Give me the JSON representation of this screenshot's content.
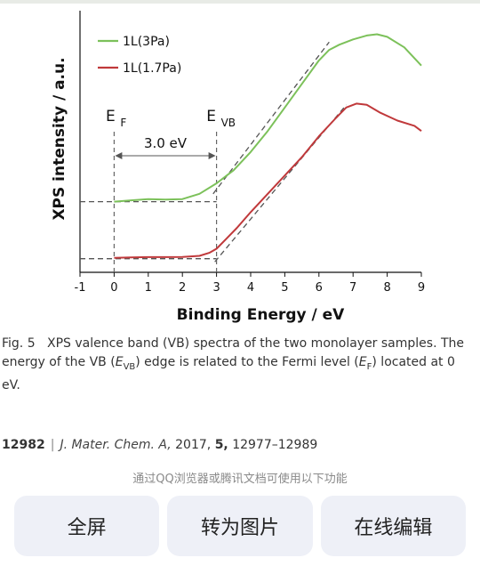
{
  "chart_data": {
    "type": "line",
    "xlabel": "Binding Energy / eV",
    "ylabel": "XPS intensity / a.u.",
    "xlim": [
      -1,
      9
    ],
    "xticks": [
      "-1",
      "0",
      "1",
      "2",
      "3",
      "4",
      "5",
      "6",
      "7",
      "8",
      "9"
    ],
    "legend_position": "top-left",
    "grid": false,
    "series": [
      {
        "name": "1L(3Pa)",
        "color": "#7cc15a",
        "x": [
          0.0,
          0.5,
          1.0,
          1.5,
          2.0,
          2.5,
          3.0,
          3.5,
          4.0,
          4.5,
          5.0,
          5.5,
          6.0,
          6.3,
          6.6,
          7.0,
          7.4,
          7.7,
          8.0,
          8.5,
          9.0
        ],
        "y": [
          0.27,
          0.275,
          0.28,
          0.278,
          0.28,
          0.3,
          0.34,
          0.39,
          0.46,
          0.54,
          0.63,
          0.72,
          0.81,
          0.85,
          0.87,
          0.89,
          0.905,
          0.91,
          0.9,
          0.86,
          0.79
        ]
      },
      {
        "name": "1L(1.7Pa)",
        "color": "#c0393b",
        "x": [
          0.0,
          0.5,
          1.0,
          1.5,
          2.0,
          2.5,
          2.8,
          3.0,
          3.3,
          3.6,
          4.0,
          4.5,
          5.0,
          5.5,
          6.0,
          6.5,
          6.8,
          7.1,
          7.4,
          7.8,
          8.3,
          8.8,
          9.0
        ],
        "y": [
          0.055,
          0.057,
          0.058,
          0.058,
          0.059,
          0.063,
          0.075,
          0.09,
          0.13,
          0.17,
          0.23,
          0.3,
          0.37,
          0.44,
          0.52,
          0.59,
          0.63,
          0.645,
          0.64,
          0.61,
          0.58,
          0.56,
          0.54
        ]
      }
    ],
    "annotations": {
      "ef_label": "E",
      "ef_sub": "F",
      "evb_label": "E",
      "evb_sub": "VB",
      "gap_label": "3.0 eV",
      "ef_x": 0,
      "evb_x": 3.0,
      "baseline_green_y": 0.27,
      "baseline_red_y": 0.052,
      "tangent_green": [
        [
          2.9,
          0.3
        ],
        [
          6.3,
          0.88
        ]
      ],
      "tangent_red": [
        [
          2.95,
          0.04
        ],
        [
          6.8,
          0.64
        ]
      ]
    }
  },
  "caption": {
    "label": "Fig. 5",
    "text_before": "XPS valence band (VB) spectra of the two monolayer samples. The energy of the VB (",
    "vb_sym": "E",
    "vb_sub": "VB",
    "text_mid": ") edge is related to the Fermi level (",
    "ef_sym": "E",
    "ef_sub": "F",
    "text_after": ") located at 0 eV."
  },
  "citation": {
    "page": "12982",
    "separator": "|",
    "journal": "J. Mater. Chem. A,",
    "year": "2017,",
    "volume": "5,",
    "pages": "12977–12989"
  },
  "hint": "通过QQ浏览器或腾讯文档可使用以下功能",
  "actions": {
    "fullscreen": "全屏",
    "to_image": "转为图片",
    "edit_online": "在线编辑"
  }
}
